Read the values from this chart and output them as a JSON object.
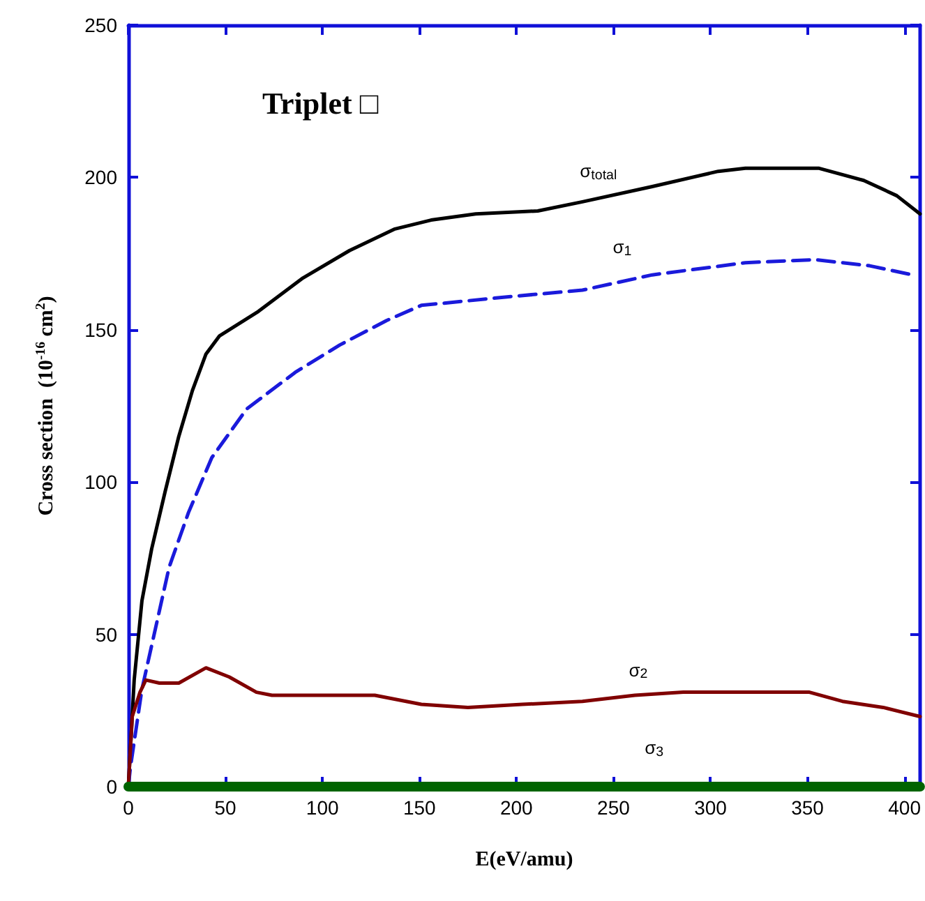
{
  "chart_data": {
    "type": "line",
    "title": "Triplet □",
    "xlabel": "E(eV/amu)",
    "ylabel": "Cross section  (10$^{-16}$ cm$^{2}$)",
    "xlim": [
      0,
      408
    ],
    "xticks": [
      0,
      50,
      100,
      150,
      200,
      250,
      300,
      350,
      400
    ],
    "ylim": [
      0,
      250
    ],
    "yticks": [
      0,
      50,
      100,
      150,
      200,
      250
    ],
    "grid": false,
    "marker": "none",
    "series": [
      {
        "name": "σ$_{total}$",
        "color": "#000000",
        "line_style": "solid",
        "x": [
          0,
          3,
          7,
          12,
          19,
          26,
          33,
          40,
          47,
          67,
          90,
          114,
          137,
          156,
          179,
          211,
          234,
          270,
          304,
          318,
          356,
          379,
          396,
          408
        ],
        "values": [
          0,
          35,
          61,
          78,
          97,
          115,
          130,
          142,
          148,
          156,
          167,
          176,
          183,
          186,
          188,
          189,
          192,
          197,
          202,
          203,
          203,
          199,
          194,
          188
        ]
      },
      {
        "name": "σ$_{1}$",
        "color": "#1a1adb",
        "line_style": "dashed",
        "x": [
          0,
          1,
          7,
          14,
          21,
          31,
          43,
          61,
          86,
          109,
          133,
          151,
          199,
          234,
          270,
          318,
          354,
          382,
          404
        ],
        "values": [
          0,
          6,
          32,
          52,
          72,
          90,
          108,
          124,
          136,
          145,
          153,
          158,
          161,
          163,
          168,
          172,
          173,
          171,
          168
        ]
      },
      {
        "name": "σ$_{2}$",
        "color": "#800000",
        "line_style": "solid",
        "x": [
          0,
          2,
          6,
          9,
          16,
          26,
          40,
          52,
          66,
          74,
          127,
          151,
          175,
          203,
          234,
          261,
          286,
          351,
          368,
          389,
          408
        ],
        "values": [
          0,
          23,
          31,
          35,
          34,
          34,
          39,
          36,
          31,
          30,
          30,
          27,
          26,
          27,
          28,
          30,
          31,
          31,
          28,
          26,
          23
        ]
      },
      {
        "name": "σ$_{3}$",
        "color": "#006400",
        "line_style": "solid",
        "x": [
          0,
          100,
          200,
          300,
          408
        ],
        "values": [
          0,
          0,
          0,
          0,
          0
        ]
      }
    ]
  }
}
